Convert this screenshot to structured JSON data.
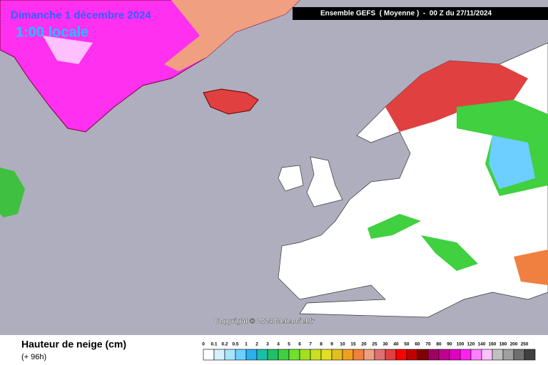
{
  "header": {
    "date": "Dimanche 1 décembre 2024",
    "time": "1:00 locale",
    "model": "Ensemble GEFS  ( Moyenne )  -  00 Z du 27/11/2024"
  },
  "copyright": "Copyright © 2024 Meteociel.fr",
  "legend": {
    "title": "Hauteur de neige (cm)",
    "lead": "(+ 96h)",
    "levels": [
      {
        "label": "0",
        "color": "#ffffff"
      },
      {
        "label": "0.1",
        "color": "#d4f2ff"
      },
      {
        "label": "0.2",
        "color": "#a8e4ff"
      },
      {
        "label": "0.5",
        "color": "#6ccfff"
      },
      {
        "label": "1",
        "color": "#2ab0ec"
      },
      {
        "label": "2",
        "color": "#18c0a8"
      },
      {
        "label": "3",
        "color": "#20c068"
      },
      {
        "label": "4",
        "color": "#40d040"
      },
      {
        "label": "5",
        "color": "#70e030"
      },
      {
        "label": "6",
        "color": "#a0e020"
      },
      {
        "label": "7",
        "color": "#c8e020"
      },
      {
        "label": "8",
        "color": "#e0e020"
      },
      {
        "label": "9",
        "color": "#e0c020"
      },
      {
        "label": "10",
        "color": "#f0a020"
      },
      {
        "label": "15",
        "color": "#f08040"
      },
      {
        "label": "20",
        "color": "#f0a080"
      },
      {
        "label": "25",
        "color": "#e07070"
      },
      {
        "label": "30",
        "color": "#e04040"
      },
      {
        "label": "40",
        "color": "#ff0000"
      },
      {
        "label": "50",
        "color": "#c00000"
      },
      {
        "label": "60",
        "color": "#800000"
      },
      {
        "label": "70",
        "color": "#a00060"
      },
      {
        "label": "80",
        "color": "#c00090"
      },
      {
        "label": "90",
        "color": "#e000c0"
      },
      {
        "label": "100",
        "color": "#ff20f0"
      },
      {
        "label": "120",
        "color": "#ff80ff"
      },
      {
        "label": "140",
        "color": "#ffc0ff"
      },
      {
        "label": "160",
        "color": "#c0c0c0"
      },
      {
        "label": "180",
        "color": "#a0a0a0"
      },
      {
        "label": "200",
        "color": "#707070"
      },
      {
        "label": "250",
        "color": "#404040"
      }
    ]
  }
}
